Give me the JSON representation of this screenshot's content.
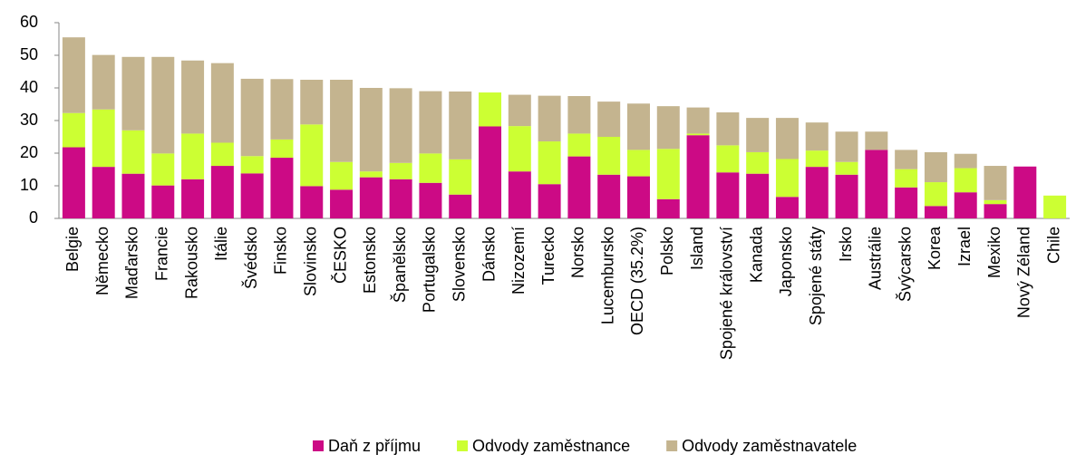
{
  "chart_data": {
    "type": "stacked_bar",
    "categories": [
      "Belgie",
      "Německo",
      "Maďarsko",
      "Francie",
      "Rakousko",
      "Itálie",
      "Švédsko",
      "Finsko",
      "Slovinsko",
      "ČESKO",
      "Estonsko",
      "Španělsko",
      "Portugalsko",
      "Slovensko",
      "Dánsko",
      "Nizozemí",
      "Turecko",
      "Norsko",
      "Lucembursko",
      "OECD (35.2%)",
      "Polsko",
      "Island",
      "Spojené království",
      "Kanada",
      "Japonsko",
      "Spojené státy",
      "Irsko",
      "Austrálie",
      "Švýcarsko",
      "Korea",
      "Izrael",
      "Mexiko",
      "Nový Zéland",
      "Chile"
    ],
    "series": [
      {
        "name": "Daň z příjmu",
        "color": "#cc0a85",
        "values": [
          21.8,
          15.8,
          13.7,
          10.1,
          12.0,
          16.1,
          13.8,
          18.6,
          9.9,
          8.8,
          12.6,
          12.0,
          10.9,
          7.3,
          28.2,
          14.4,
          10.5,
          19.0,
          13.4,
          12.9,
          5.9,
          25.5,
          14.1,
          13.7,
          6.6,
          15.8,
          13.4,
          21.0,
          9.5,
          3.8,
          8.0,
          4.4,
          15.9,
          0
        ]
      },
      {
        "name": "Odvody zaměstnance",
        "color": "#ccff33",
        "values": [
          10.5,
          17.6,
          13.3,
          9.8,
          14.0,
          7.1,
          5.3,
          5.6,
          18.9,
          8.5,
          1.8,
          5.0,
          9.0,
          10.8,
          10.4,
          13.9,
          13.1,
          7.0,
          11.6,
          8.1,
          15.4,
          0.5,
          8.3,
          6.6,
          11.6,
          5.0,
          3.9,
          0,
          5.6,
          7.3,
          7.4,
          1.2,
          0,
          7.0
        ]
      },
      {
        "name": "Odvody zaměstnavatele",
        "color": "#c4b48f",
        "values": [
          23.2,
          16.7,
          22.5,
          29.6,
          22.4,
          24.4,
          23.7,
          18.5,
          13.7,
          25.2,
          25.6,
          22.9,
          19.1,
          20.8,
          0,
          9.6,
          14.0,
          11.5,
          10.8,
          14.2,
          13.1,
          8.0,
          10.1,
          10.5,
          12.6,
          8.6,
          9.3,
          5.6,
          5.9,
          9.2,
          4.4,
          10.5,
          0,
          0
        ]
      }
    ],
    "ylim": [
      0,
      60
    ],
    "yticks": [
      0,
      10,
      20,
      30,
      40,
      50,
      60
    ],
    "legend": "bottom"
  }
}
